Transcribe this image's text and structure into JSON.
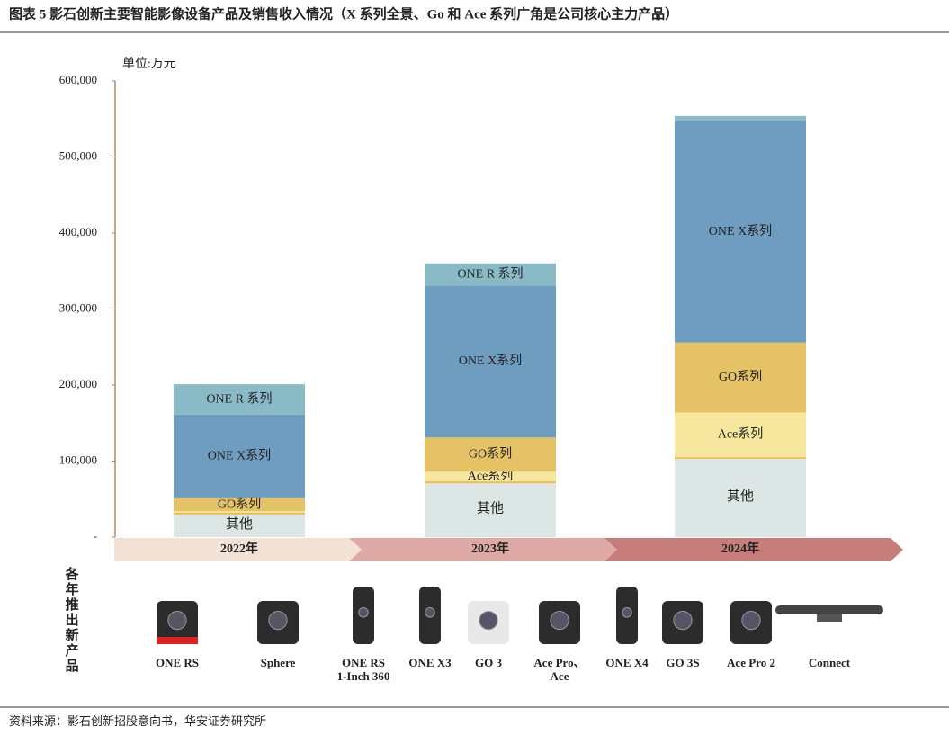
{
  "chart_data": {
    "type": "stacked-bar",
    "title": "图表 5 影石创新主要智能影像设备产品及销售收入情况（X 系列全景、Go 和 Ace 系列广角是公司核心主力产品）",
    "unit_label": "单位:万元",
    "categories": [
      "2022年",
      "2023年",
      "2024年"
    ],
    "category_colors": [
      "#f3e3d6",
      "#dfaaa6",
      "#c77e7b"
    ],
    "series": [
      {
        "name": "其他",
        "color": "#dce6e4",
        "values": [
          32000,
          73000,
          105000
        ]
      },
      {
        "name": "Ace系列",
        "color": "#f7e79e",
        "values": [
          2000,
          13000,
          59000
        ]
      },
      {
        "name": "GO系列",
        "color": "#e6c266",
        "values": [
          17000,
          45000,
          92000
        ]
      },
      {
        "name": "ONE X系列",
        "color": "#6f9dc0",
        "values": [
          110000,
          200000,
          291000
        ]
      },
      {
        "name": "ONE R 系列",
        "color": "#8bbac7",
        "values": [
          40000,
          29000,
          7000
        ]
      }
    ],
    "ylim": [
      0,
      600000
    ],
    "yticks": [
      {
        "value": 0,
        "label": "-"
      },
      {
        "value": 100000,
        "label": "100,000"
      },
      {
        "value": 200000,
        "label": "200,000"
      },
      {
        "value": 300000,
        "label": "300,000"
      },
      {
        "value": 400000,
        "label": "400,000"
      },
      {
        "value": 500000,
        "label": "500,000"
      },
      {
        "value": 600000,
        "label": "600,000"
      }
    ]
  },
  "products_label": "各年推出新产品",
  "products": [
    [
      "ONE RS"
    ],
    [
      "Sphere"
    ],
    [
      "ONE RS",
      "1-Inch 360"
    ],
    [
      "ONE X3"
    ],
    [
      "GO 3"
    ],
    [
      "Ace Pro、",
      "Ace"
    ],
    [
      "ONE X4"
    ],
    [
      "GO 3S"
    ],
    [
      "Ace Pro 2"
    ],
    [
      "Connect"
    ]
  ],
  "source": "资料来源：影石创新招股意向书，华安证券研究所"
}
